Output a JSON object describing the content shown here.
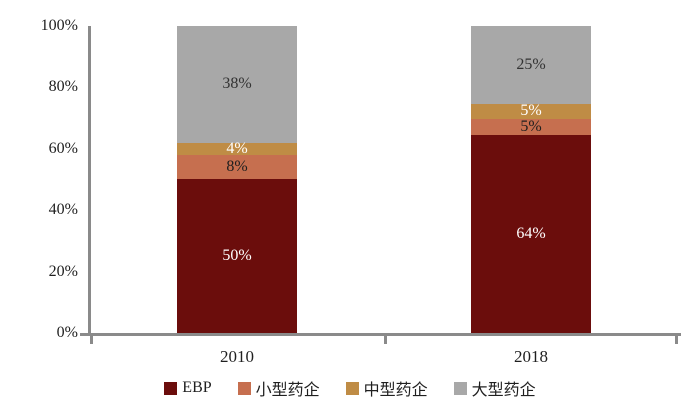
{
  "chart_data": {
    "type": "bar",
    "stacked": true,
    "orientation": "vertical",
    "categories": [
      "2010",
      "2018"
    ],
    "series": [
      {
        "name": "EBP",
        "color": "#6b0d0c",
        "label_color": "#ffffff",
        "values": [
          50,
          64
        ]
      },
      {
        "name": "小型药企",
        "color": "#c66f4f",
        "label_color": "#1f1f1f",
        "values": [
          8,
          5
        ]
      },
      {
        "name": "中型药企",
        "color": "#bf8c45",
        "label_color": "#ffffff",
        "values": [
          4,
          5
        ]
      },
      {
        "name": "大型药企",
        "color": "#a8a8a8",
        "label_color": "#333333",
        "values": [
          38,
          25
        ]
      }
    ],
    "data_labels": {
      "2010": {
        "EBP": "50%",
        "小型药企": "8%",
        "中型药企": "4%",
        "大型药企": "38%"
      },
      "2018": {
        "EBP": "64%",
        "小型药企": "5%",
        "中型药企": "5%",
        "大型药企": "25%"
      }
    },
    "value_suffix": "%",
    "y_ticks": [
      "100%",
      "80%",
      "60%",
      "40%",
      "20%",
      "0%"
    ],
    "ylim": [
      0,
      100
    ],
    "grid": false,
    "legend_position": "bottom",
    "title": "",
    "xlabel": "",
    "ylabel": ""
  },
  "style": {
    "axis_color": "#8a8a8a",
    "text_color": "#1f1f1f",
    "background": "#ffffff"
  }
}
